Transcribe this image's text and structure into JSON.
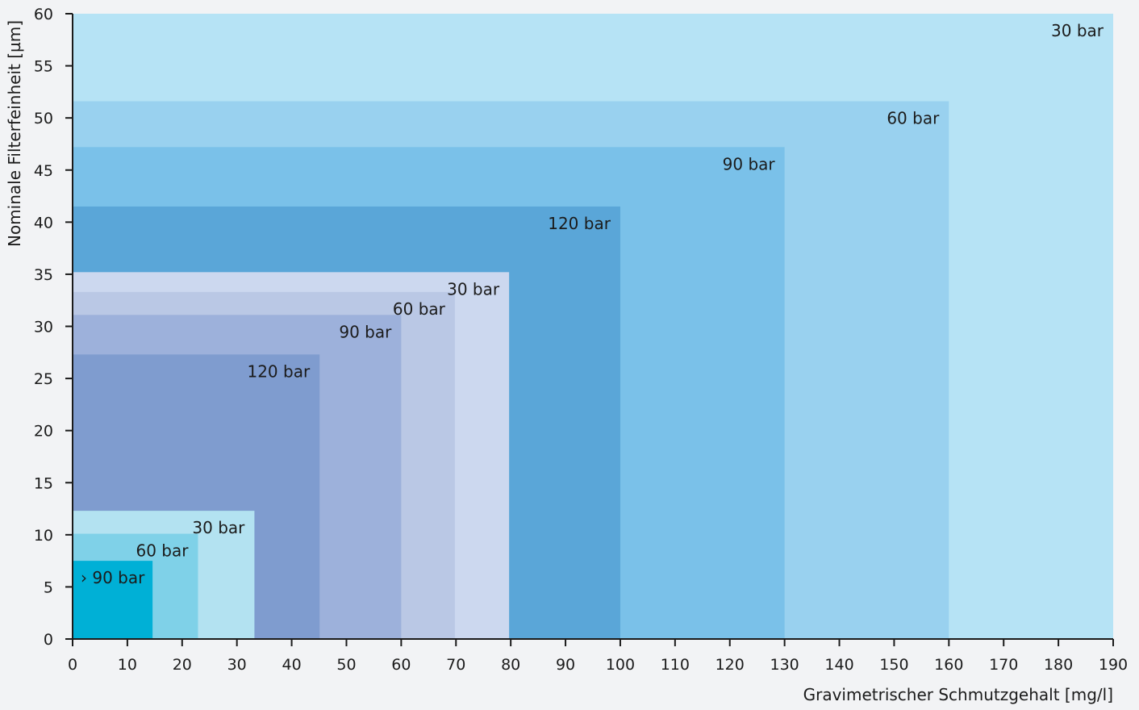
{
  "chart_data": {
    "type": "area",
    "title": "",
    "xlabel": "Gravimetrischer Schmutzgehalt [mg/l]",
    "ylabel": "Nominale Filterfeinheit [µm]",
    "xlim": [
      0,
      190
    ],
    "ylim": [
      0,
      60
    ],
    "x_ticks": [
      0,
      10,
      20,
      30,
      40,
      50,
      60,
      70,
      80,
      90,
      100,
      110,
      120,
      130,
      140,
      150,
      160,
      170,
      180,
      190
    ],
    "y_ticks": [
      0,
      5,
      10,
      15,
      20,
      25,
      30,
      35,
      40,
      45,
      50,
      55,
      60
    ],
    "grid": false,
    "legend": "none",
    "regions": [
      {
        "group": 1,
        "label": "30 bar",
        "x_max": 190,
        "y_max": 60,
        "color": "#b6e3f5"
      },
      {
        "group": 1,
        "label": "60 bar",
        "x_max": 160,
        "y_max": 51.6,
        "color": "#99d1ef"
      },
      {
        "group": 1,
        "label": "90 bar",
        "x_max": 130,
        "y_max": 47.2,
        "color": "#7ac1e9"
      },
      {
        "group": 1,
        "label": "120 bar",
        "x_max": 100,
        "y_max": 41.5,
        "color": "#5aa6d8"
      },
      {
        "group": 2,
        "label": "30 bar",
        "x_max": 79.7,
        "y_max": 35.2,
        "color": "#ccd8ef"
      },
      {
        "group": 2,
        "label": "60 bar",
        "x_max": 69.8,
        "y_max": 33.3,
        "color": "#bac8e5"
      },
      {
        "group": 2,
        "label": "90 bar",
        "x_max": 60,
        "y_max": 31.1,
        "color": "#9db1db"
      },
      {
        "group": 2,
        "label": "120 bar",
        "x_max": 45.1,
        "y_max": 27.3,
        "color": "#7f9ccf"
      },
      {
        "group": 3,
        "label": "30 bar",
        "x_max": 33.2,
        "y_max": 12.3,
        "color": "#b3e2f1"
      },
      {
        "group": 3,
        "label": "60 bar",
        "x_max": 22.9,
        "y_max": 10.1,
        "color": "#7fd1e8"
      },
      {
        "group": 3,
        "label": "› 90 bar",
        "x_max": 14.6,
        "y_max": 7.5,
        "color": "#00b0d6"
      }
    ],
    "axis_color": "#1b1b1b",
    "background": "#f2f3f5"
  }
}
